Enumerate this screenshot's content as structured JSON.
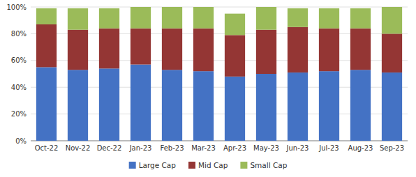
{
  "chart_data": {
    "type": "bar",
    "stacked": true,
    "categories": [
      "Oct-22",
      "Nov-22",
      "Dec-22",
      "Jan-23",
      "Feb-23",
      "Mar-23",
      "Apr-23",
      "May-23",
      "Jun-23",
      "Jul-23",
      "Aug-23",
      "Sep-23"
    ],
    "series": [
      {
        "name": "Large Cap",
        "color": "#4472C4",
        "values": [
          55,
          53,
          54,
          57,
          53,
          52,
          48,
          50,
          51,
          52,
          53,
          51
        ]
      },
      {
        "name": "Mid Cap",
        "color": "#943634",
        "values": [
          32,
          30,
          30,
          27,
          31,
          32,
          31,
          33,
          34,
          32,
          31,
          29
        ]
      },
      {
        "name": "Small Cap",
        "color": "#9BBB59",
        "values": [
          12,
          16,
          15,
          16,
          16,
          16,
          16,
          17,
          14,
          15,
          15,
          20
        ]
      }
    ],
    "ylim": [
      0,
      100
    ],
    "yticks": [
      {
        "value": 0,
        "label": "0%"
      },
      {
        "value": 20,
        "label": "20%"
      },
      {
        "value": 40,
        "label": "40%"
      },
      {
        "value": 60,
        "label": "60%"
      },
      {
        "value": 80,
        "label": "80%"
      },
      {
        "value": 100,
        "label": "100%"
      }
    ],
    "grid": true,
    "legend": "bottom"
  }
}
